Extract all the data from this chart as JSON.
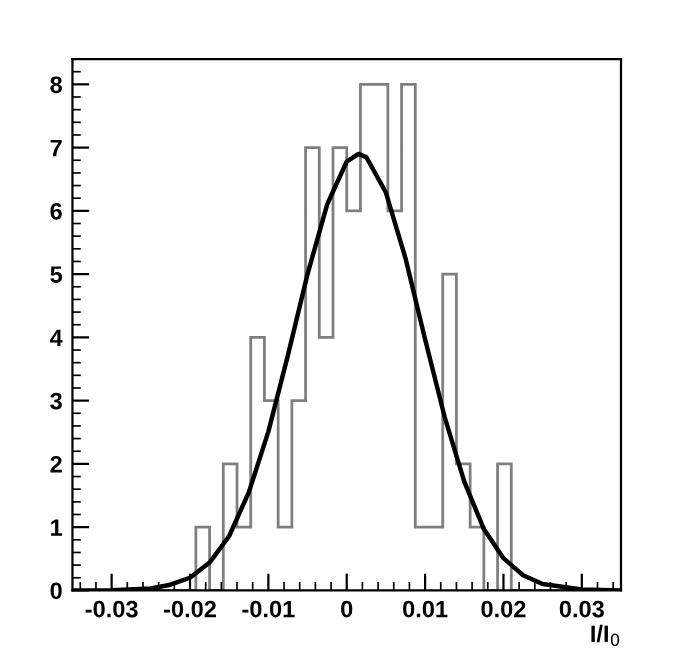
{
  "chart_data": [
    {
      "type": "histogram",
      "xlabel": "I/I$_{0}$",
      "color": "#7f7f7f",
      "bins": [
        -0.035,
        -0.03325,
        -0.0315,
        -0.02975,
        -0.028,
        -0.02625,
        -0.0245,
        -0.02275,
        -0.021,
        -0.01925,
        -0.0175,
        -0.01575,
        -0.014,
        -0.01225,
        -0.0105,
        -0.00875,
        -0.007,
        -0.00525,
        -0.0035,
        -0.00175,
        0,
        0.00175,
        0.0035,
        0.00525,
        0.007,
        0.00875,
        0.0105,
        0.01225,
        0.014,
        0.01575,
        0.0175,
        0.01925,
        0.021,
        0.02275,
        0.0245,
        0.02625,
        0.028,
        0.02975,
        0.0315,
        0.03325,
        0.035
      ],
      "values": [
        0,
        0,
        0,
        0,
        0,
        0,
        0,
        0,
        0,
        1,
        0,
        2,
        1,
        4,
        3,
        1,
        3,
        7,
        4,
        7,
        6,
        8,
        8,
        6,
        8,
        1,
        1,
        5,
        2,
        1,
        0,
        2,
        0,
        0,
        0,
        0,
        0,
        0,
        0,
        0
      ],
      "series": [
        {
          "type": "line",
          "color": "#000000",
          "x": [
            -0.035,
            -0.03,
            -0.025,
            -0.0225,
            -0.02,
            -0.0175,
            -0.015,
            -0.0125,
            -0.01,
            -0.0075,
            -0.005,
            -0.0025,
            0,
            0.0015,
            0.0025,
            0.005,
            0.0075,
            0.01,
            0.0125,
            0.015,
            0.0175,
            0.02,
            0.0225,
            0.025,
            0.03,
            0.035
          ],
          "values": [
            0,
            0.004,
            0.03,
            0.09,
            0.2,
            0.44,
            0.86,
            1.55,
            2.51,
            3.72,
            5.0,
            6.1,
            6.78,
            6.9,
            6.85,
            6.29,
            5.25,
            3.97,
            2.74,
            1.72,
            0.97,
            0.51,
            0.24,
            0.1,
            0.014,
            0
          ]
        }
      ],
      "xlim": [
        -0.035,
        0.035
      ],
      "ylim": [
        0,
        8.4
      ],
      "xticks": [
        -0.03,
        -0.02,
        -0.01,
        0,
        0.01,
        0.02,
        0.03
      ],
      "yticks": [
        0,
        1,
        2,
        3,
        4,
        5,
        6,
        7,
        8
      ],
      "grid": false,
      "legend": false
    }
  ]
}
